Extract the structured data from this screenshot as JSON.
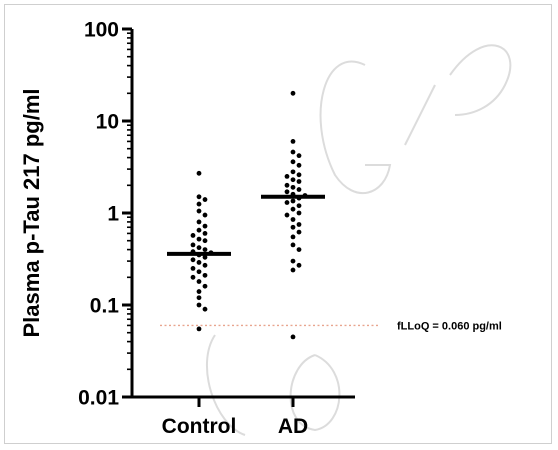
{
  "chart_data": {
    "type": "scatter",
    "title": "",
    "ylabel": "Plasma p-Tau 217 pg/ml",
    "xlabel": "",
    "yscale": "log",
    "ylim": [
      0.01,
      100
    ],
    "yticks": [
      0.01,
      0.1,
      1,
      10,
      100
    ],
    "ytick_labels": [
      "0.01",
      "0.1",
      "1",
      "10",
      "100"
    ],
    "categories": [
      "Control",
      "AD"
    ],
    "series": [
      {
        "category": "Control",
        "median": 0.36,
        "values": [
          2.7,
          1.5,
          1.4,
          1.25,
          1.05,
          0.95,
          0.8,
          0.72,
          0.65,
          0.6,
          0.57,
          0.52,
          0.5,
          0.45,
          0.42,
          0.4,
          0.38,
          0.37,
          0.35,
          0.33,
          0.31,
          0.29,
          0.27,
          0.25,
          0.23,
          0.21,
          0.2,
          0.18,
          0.16,
          0.14,
          0.12,
          0.1,
          0.09,
          0.055
        ]
      },
      {
        "category": "AD",
        "median": 1.5,
        "values": [
          20,
          6.0,
          4.6,
          4.2,
          3.6,
          3.3,
          2.8,
          2.6,
          2.5,
          2.3,
          2.2,
          2.0,
          1.9,
          1.8,
          1.7,
          1.6,
          1.55,
          1.45,
          1.35,
          1.3,
          1.2,
          1.1,
          1.0,
          0.95,
          0.85,
          0.75,
          0.7,
          0.62,
          0.55,
          0.45,
          0.4,
          0.3,
          0.27,
          0.24,
          0.045
        ]
      }
    ],
    "reference_line": {
      "value": 0.06,
      "label": "fLLoQ = 0.060 pg/ml",
      "style": "dotted",
      "color": "#e8a48e"
    },
    "grid": false,
    "legend": "none"
  }
}
